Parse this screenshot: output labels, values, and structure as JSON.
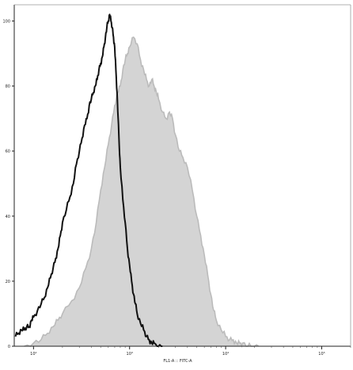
{
  "chart_data": {
    "type": "area",
    "title": "",
    "xlabel": "FL1-A :: FITC-A",
    "ylabel": "",
    "x_scale": "log",
    "xlim": [
      63,
      200000
    ],
    "ylim": [
      0,
      105
    ],
    "grid": false,
    "legend": "none",
    "x_ticks": [
      {
        "value": 100,
        "label": "10²"
      },
      {
        "value": 1000,
        "label": "10³"
      },
      {
        "value": 10000,
        "label": "10⁴"
      },
      {
        "value": 100000,
        "label": "10⁵"
      }
    ],
    "y_ticks": [
      0,
      20,
      40,
      60,
      80,
      100
    ],
    "series": [
      {
        "color": "#111111",
        "style": "outline",
        "x": [
          65,
          70,
          75,
          80,
          85,
          90,
          95,
          100,
          110,
          120,
          130,
          140,
          150,
          160,
          170,
          180,
          190,
          200,
          220,
          240,
          260,
          280,
          300,
          320,
          340,
          360,
          380,
          400,
          420,
          440,
          460,
          480,
          500,
          520,
          540,
          560,
          580,
          600,
          620,
          640,
          660,
          680,
          700,
          720,
          740,
          760,
          780,
          800,
          850,
          900,
          950,
          1000,
          1050,
          1100,
          1150,
          1200,
          1300,
          1400,
          1500,
          1600,
          1700,
          1800,
          2000,
          2200
        ],
        "y": [
          3,
          4,
          5,
          5,
          6,
          6,
          8,
          9,
          11,
          13,
          15,
          18,
          21,
          24,
          27,
          30,
          34,
          38,
          42,
          46,
          50,
          56,
          60,
          64,
          68,
          70,
          74,
          76,
          78,
          80,
          82,
          85,
          87,
          89,
          92,
          95,
          98,
          100,
          102,
          100,
          98,
          95,
          92,
          85,
          78,
          70,
          62,
          55,
          45,
          38,
          30,
          25,
          20,
          16,
          13,
          10,
          7,
          5,
          3,
          2,
          1,
          1,
          0,
          0
        ]
      },
      {
        "color": "#bbbbbb",
        "fill": "#d4d4d4",
        "style": "filled",
        "x": [
          80,
          100,
          120,
          140,
          160,
          180,
          200,
          250,
          300,
          350,
          400,
          450,
          500,
          550,
          600,
          650,
          700,
          750,
          800,
          850,
          900,
          950,
          1000,
          1100,
          1200,
          1300,
          1400,
          1500,
          1600,
          1700,
          1800,
          1900,
          2000,
          2200,
          2400,
          2600,
          2800,
          3000,
          3300,
          3600,
          4000,
          4500,
          5000,
          5500,
          6000,
          6500,
          7000,
          7500,
          8000,
          9000,
          10000,
          11000,
          12000,
          13000,
          14000,
          15000,
          17000,
          19000,
          22000
        ],
        "y": [
          0,
          1,
          2,
          4,
          6,
          8,
          10,
          14,
          18,
          24,
          30,
          38,
          48,
          55,
          62,
          68,
          74,
          78,
          80,
          85,
          88,
          90,
          92,
          95,
          93,
          88,
          85,
          82,
          80,
          82,
          80,
          78,
          76,
          72,
          70,
          72,
          70,
          65,
          60,
          58,
          55,
          48,
          40,
          34,
          28,
          22,
          16,
          11,
          8,
          5,
          3,
          2,
          2,
          1,
          1,
          1,
          0,
          0,
          0
        ]
      }
    ]
  }
}
